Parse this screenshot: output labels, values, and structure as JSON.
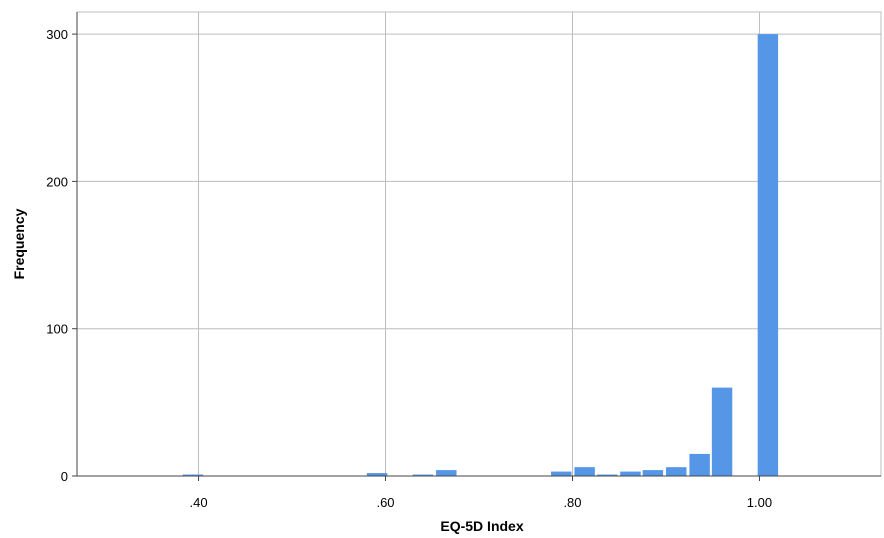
{
  "chart_data": {
    "type": "bar",
    "xlabel": "EQ-5D Index",
    "ylabel": "Frequency",
    "xlim": [
      0.27,
      1.13
    ],
    "ylim": [
      0,
      315
    ],
    "x_ticks": [
      0.4,
      0.6,
      0.8,
      1.0
    ],
    "x_tick_labels": [
      ".40",
      ".60",
      ".80",
      "1.00"
    ],
    "y_ticks": [
      0,
      100,
      200,
      300
    ],
    "y_tick_labels": [
      "0",
      "100",
      "200",
      "300"
    ],
    "grid": true,
    "bar_color": "#5596e6",
    "bin_width": 0.024,
    "bins": [
      {
        "x": 0.394,
        "count": 1
      },
      {
        "x": 0.591,
        "count": 2
      },
      {
        "x": 0.64,
        "count": 1
      },
      {
        "x": 0.665,
        "count": 4
      },
      {
        "x": 0.788,
        "count": 3
      },
      {
        "x": 0.813,
        "count": 6
      },
      {
        "x": 0.837,
        "count": 1
      },
      {
        "x": 0.862,
        "count": 3
      },
      {
        "x": 0.886,
        "count": 4
      },
      {
        "x": 0.911,
        "count": 6
      },
      {
        "x": 0.936,
        "count": 15
      },
      {
        "x": 0.96,
        "count": 60
      },
      {
        "x": 1.009,
        "count": 300
      }
    ]
  }
}
